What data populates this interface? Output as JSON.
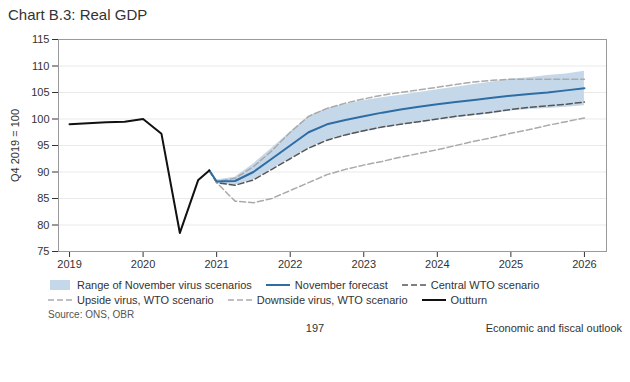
{
  "chart_data": {
    "type": "line",
    "title": "Chart B.3: Real GDP",
    "ylabel": "Q4 2019 = 100",
    "caption": "Source: ONS, OBR",
    "annotations": [
      "197",
      "Economic and fiscal outlook"
    ],
    "xlim": [
      2018.85,
      2026.3
    ],
    "xticks": [
      2019,
      2020,
      2021,
      2022,
      2023,
      2024,
      2025,
      2026
    ],
    "ylim": [
      75,
      115
    ],
    "yticks": [
      75,
      80,
      85,
      90,
      95,
      100,
      105,
      110,
      115
    ],
    "grid": true,
    "legend": "bottom",
    "series": [
      {
        "name": "Range of November virus scenarios",
        "type": "area",
        "color": "#c5d8ea",
        "x": [
          2020.9,
          2021.0,
          2021.25,
          2021.5,
          2021.75,
          2022.0,
          2022.25,
          2022.5,
          2022.75,
          2023.0,
          2023.25,
          2023.5,
          2023.75,
          2024.0,
          2024.25,
          2024.5,
          2024.75,
          2025.0,
          2025.25,
          2025.5,
          2025.75,
          2026.0
        ],
        "lower": [
          90.3,
          87.8,
          87.5,
          88.5,
          90.5,
          92.5,
          94.5,
          96.0,
          96.8,
          97.5,
          98.2,
          98.8,
          99.3,
          99.8,
          100.2,
          100.6,
          101.0,
          101.5,
          101.8,
          102.0,
          102.2,
          102.5
        ],
        "upper": [
          90.3,
          88.5,
          89.0,
          91.5,
          94.5,
          97.5,
          100.5,
          102.0,
          102.8,
          103.5,
          104.0,
          104.5,
          105.0,
          105.5,
          106.0,
          106.5,
          107.0,
          107.5,
          107.8,
          108.2,
          108.5,
          109.0
        ]
      },
      {
        "name": "November forecast",
        "type": "line",
        "color": "#2e6da4",
        "line_style": "solid",
        "x": [
          2020.9,
          2021.0,
          2021.25,
          2021.5,
          2021.75,
          2022.0,
          2022.25,
          2022.5,
          2022.75,
          2023.0,
          2023.25,
          2023.5,
          2023.75,
          2024.0,
          2024.25,
          2024.5,
          2024.75,
          2025.0,
          2025.25,
          2025.5,
          2025.75,
          2026.0
        ],
        "values": [
          90.3,
          88.2,
          88.3,
          90.0,
          92.5,
          95.0,
          97.5,
          99.0,
          99.8,
          100.5,
          101.2,
          101.8,
          102.3,
          102.8,
          103.2,
          103.6,
          104.0,
          104.4,
          104.7,
          105.0,
          105.4,
          105.8
        ]
      },
      {
        "name": "Central WTO scenario",
        "type": "line",
        "color": "#555555",
        "line_style": "dashed",
        "x": [
          2020.9,
          2021.0,
          2021.25,
          2021.5,
          2021.75,
          2022.0,
          2022.25,
          2022.5,
          2022.75,
          2023.0,
          2023.25,
          2023.5,
          2023.75,
          2024.0,
          2024.25,
          2024.5,
          2024.75,
          2025.0,
          2025.25,
          2025.5,
          2025.75,
          2026.0
        ],
        "values": [
          90.3,
          88.0,
          87.5,
          88.5,
          90.5,
          92.5,
          94.5,
          96.0,
          97.0,
          97.8,
          98.5,
          99.0,
          99.5,
          100.0,
          100.5,
          100.9,
          101.3,
          101.8,
          102.2,
          102.5,
          102.8,
          103.2
        ]
      },
      {
        "name": "Upside virus, WTO scenario",
        "type": "line",
        "color": "#aaaaaa",
        "line_style": "dashed",
        "x": [
          2020.9,
          2021.0,
          2021.25,
          2021.5,
          2021.75,
          2022.0,
          2022.25,
          2022.5,
          2022.75,
          2023.0,
          2023.25,
          2023.5,
          2023.75,
          2024.0,
          2024.25,
          2024.5,
          2024.75,
          2025.0,
          2025.25,
          2025.5,
          2025.75,
          2026.0
        ],
        "values": [
          90.3,
          88.2,
          88.8,
          91.0,
          94.0,
          97.5,
          100.5,
          102.0,
          103.0,
          103.8,
          104.5,
          105.0,
          105.5,
          106.0,
          106.5,
          107.0,
          107.3,
          107.5,
          107.5,
          107.5,
          107.5,
          107.5
        ]
      },
      {
        "name": "Downside virus, WTO scenario",
        "type": "line",
        "color": "#aaaaaa",
        "line_style": "dashed",
        "x": [
          2020.9,
          2021.0,
          2021.25,
          2021.5,
          2021.75,
          2022.0,
          2022.25,
          2022.5,
          2022.75,
          2023.0,
          2023.25,
          2023.5,
          2023.75,
          2024.0,
          2024.25,
          2024.5,
          2024.75,
          2025.0,
          2025.25,
          2025.5,
          2025.75,
          2026.0
        ],
        "values": [
          90.3,
          88.0,
          84.5,
          84.2,
          85.0,
          86.5,
          88.0,
          89.5,
          90.5,
          91.3,
          92.0,
          92.8,
          93.5,
          94.2,
          95.0,
          95.8,
          96.5,
          97.3,
          98.0,
          98.8,
          99.5,
          100.2
        ]
      },
      {
        "name": "Outturn",
        "type": "line",
        "color": "#111111",
        "line_style": "solid",
        "x": [
          2019.0,
          2019.25,
          2019.5,
          2019.75,
          2020.0,
          2020.25,
          2020.5,
          2020.75,
          2020.9
        ],
        "values": [
          99.0,
          99.2,
          99.4,
          99.5,
          100.0,
          97.2,
          78.5,
          88.5,
          90.3
        ]
      }
    ]
  }
}
